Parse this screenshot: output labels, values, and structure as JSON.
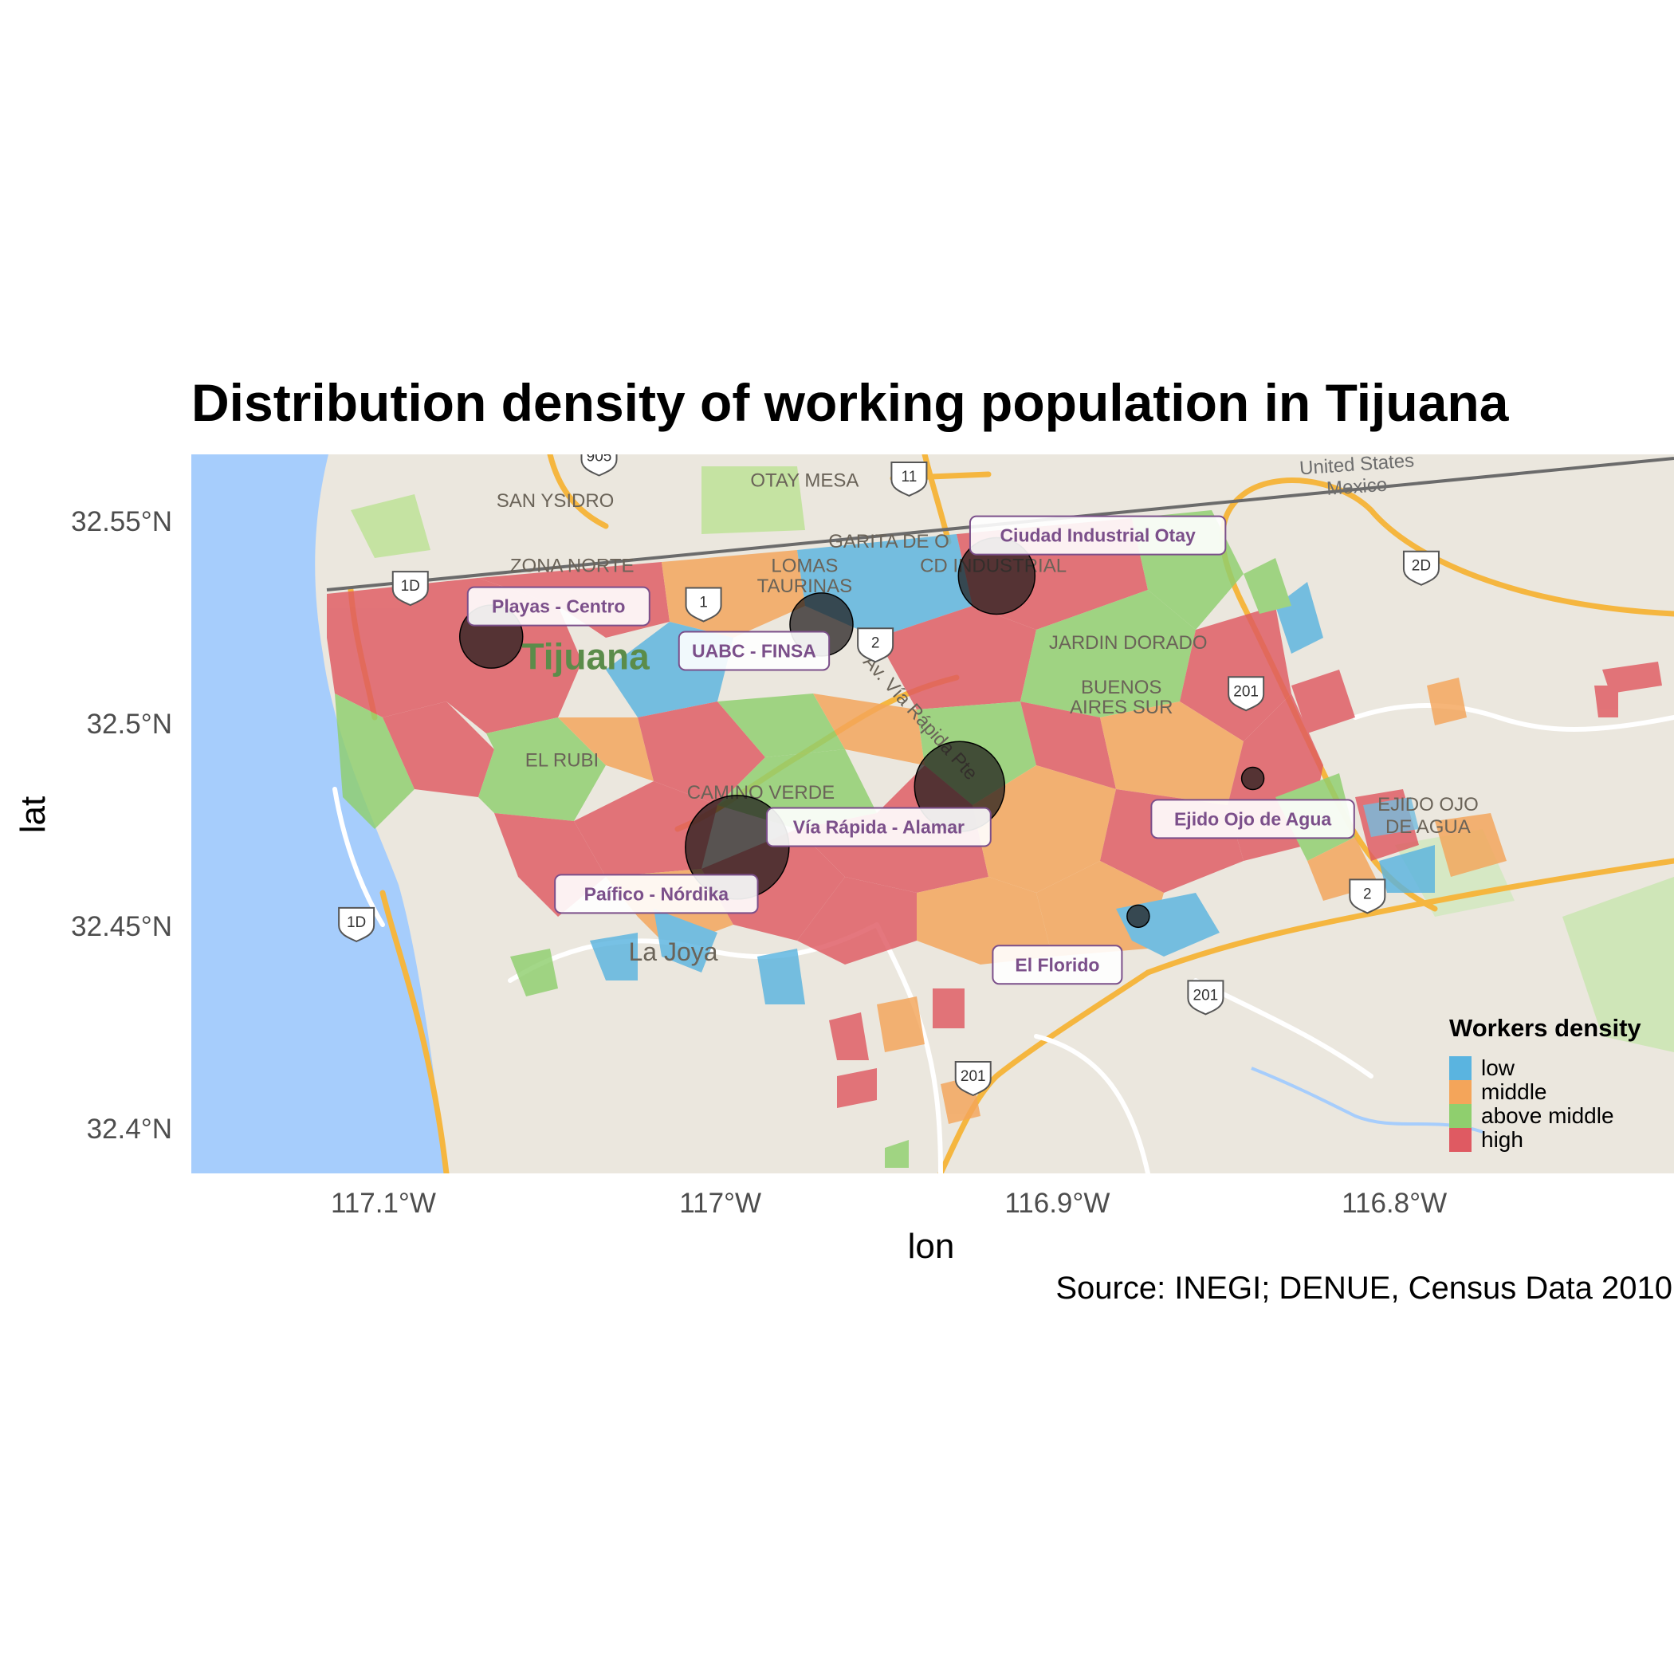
{
  "title": "Distribution density of working population in Tijuana",
  "caption": "Source: INEGI; DENUE, Census Data 2010",
  "axes": {
    "x_label": "lon",
    "y_label": "lat",
    "x_ticks": [
      {
        "value": -117.1,
        "label": "117.1°W"
      },
      {
        "value": -117.0,
        "label": "117°W"
      },
      {
        "value": -116.9,
        "label": "116.9°W"
      },
      {
        "value": -116.8,
        "label": "116.8°W"
      }
    ],
    "y_ticks": [
      {
        "value": 32.55,
        "label": "32.55°N"
      },
      {
        "value": 32.5,
        "label": "32.5°N"
      },
      {
        "value": 32.45,
        "label": "32.45°N"
      },
      {
        "value": 32.4,
        "label": "32.4°N"
      }
    ]
  },
  "basemap": {
    "place_labels": [
      {
        "text": "SAN YSIDRO",
        "lon": -117.049,
        "lat": 32.5535
      },
      {
        "text": "OTAY MESA",
        "lon": -116.975,
        "lat": 32.5585
      },
      {
        "text": "ZONA NORTE",
        "lon": -117.044,
        "lat": 32.5375
      },
      {
        "text": "GARITA DE O",
        "lon": -116.95,
        "lat": 32.5435
      },
      {
        "text": "LOMAS",
        "lon": -116.975,
        "lat": 32.5375
      },
      {
        "text": "TAURINAS",
        "lon": -116.975,
        "lat": 32.5325
      },
      {
        "text": "CD INDUSTRIAL",
        "lon": -116.919,
        "lat": 32.5375
      },
      {
        "text": "Tijuana",
        "lon": -117.04,
        "lat": 32.5135
      },
      {
        "text": "JARDIN DORADO",
        "lon": -116.879,
        "lat": 32.5185
      },
      {
        "text": "BUENOS",
        "lon": -116.881,
        "lat": 32.5075
      },
      {
        "text": "AIRES SUR",
        "lon": -116.881,
        "lat": 32.5025
      },
      {
        "text": "EL RUBI",
        "lon": -117.047,
        "lat": 32.4895
      },
      {
        "text": "CAMINO VERDE",
        "lon": -116.988,
        "lat": 32.4815
      },
      {
        "text": "Av. Vía Rápida Pte",
        "lon": -116.942,
        "lat": 32.5005
      },
      {
        "text": "La Joya",
        "lon": -117.014,
        "lat": 32.4415
      },
      {
        "text": "EJIDO OJO",
        "lon": -116.79,
        "lat": 32.4785
      },
      {
        "text": "DE AGUA",
        "lon": -116.79,
        "lat": 32.473
      },
      {
        "text": "United States",
        "lon": -116.811,
        "lat": 32.5625
      },
      {
        "text": "Mexico",
        "lon": -116.811,
        "lat": 32.557
      }
    ],
    "shields": [
      {
        "text": "905",
        "lon": -117.036,
        "lat": 32.566
      },
      {
        "text": "11",
        "lon": -116.944,
        "lat": 32.561
      },
      {
        "text": "1D",
        "lon": -117.092,
        "lat": 32.534
      },
      {
        "text": "1",
        "lon": -117.005,
        "lat": 32.53
      },
      {
        "text": "2",
        "lon": -116.954,
        "lat": 32.52
      },
      {
        "text": "201",
        "lon": -116.844,
        "lat": 32.508
      },
      {
        "text": "2D",
        "lon": -116.792,
        "lat": 32.539
      },
      {
        "text": "1D",
        "lon": -117.108,
        "lat": 32.451
      },
      {
        "text": "2",
        "lon": -116.808,
        "lat": 32.458
      },
      {
        "text": "201",
        "lon": -116.856,
        "lat": 32.433
      },
      {
        "text": "201",
        "lon": -116.925,
        "lat": 32.413
      }
    ]
  },
  "legend": {
    "title": "Workers density",
    "items": [
      {
        "label": "low",
        "color": "#5ab4e0"
      },
      {
        "label": "middle",
        "color": "#f4a55a"
      },
      {
        "label": "above middle",
        "color": "#8fcf6e"
      },
      {
        "label": "high",
        "color": "#df5a62"
      }
    ]
  },
  "points": [
    {
      "label": "Playas - Centro",
      "lon": -117.068,
      "lat": 32.5215,
      "size": 4,
      "label_lon": -117.048,
      "label_lat": 32.529
    },
    {
      "label": "UABC - FINSA",
      "lon": -116.97,
      "lat": 32.5245,
      "size": 4,
      "label_lon": -116.99,
      "label_lat": 32.518
    },
    {
      "label": "Ciudad Industrial Otay",
      "lon": -116.918,
      "lat": 32.5365,
      "size": 5,
      "label_lon": -116.888,
      "label_lat": 32.5465
    },
    {
      "label": "Vía Rápida - Alamar",
      "lon": -116.929,
      "lat": 32.4845,
      "size": 6,
      "label_lon": -116.953,
      "label_lat": 32.4745
    },
    {
      "label": "Paífico - Nórdika",
      "lon": -116.995,
      "lat": 32.4695,
      "size": 7,
      "label_lon": -117.019,
      "label_lat": 32.458
    },
    {
      "label": "Ejido Ojo de Agua",
      "lon": -116.842,
      "lat": 32.4865,
      "size": 1,
      "label_lon": -116.842,
      "label_lat": 32.4765
    },
    {
      "label": "El Florido",
      "lon": -116.876,
      "lat": 32.4525,
      "size": 1,
      "label_lon": -116.9,
      "label_lat": 32.4405
    }
  ]
}
